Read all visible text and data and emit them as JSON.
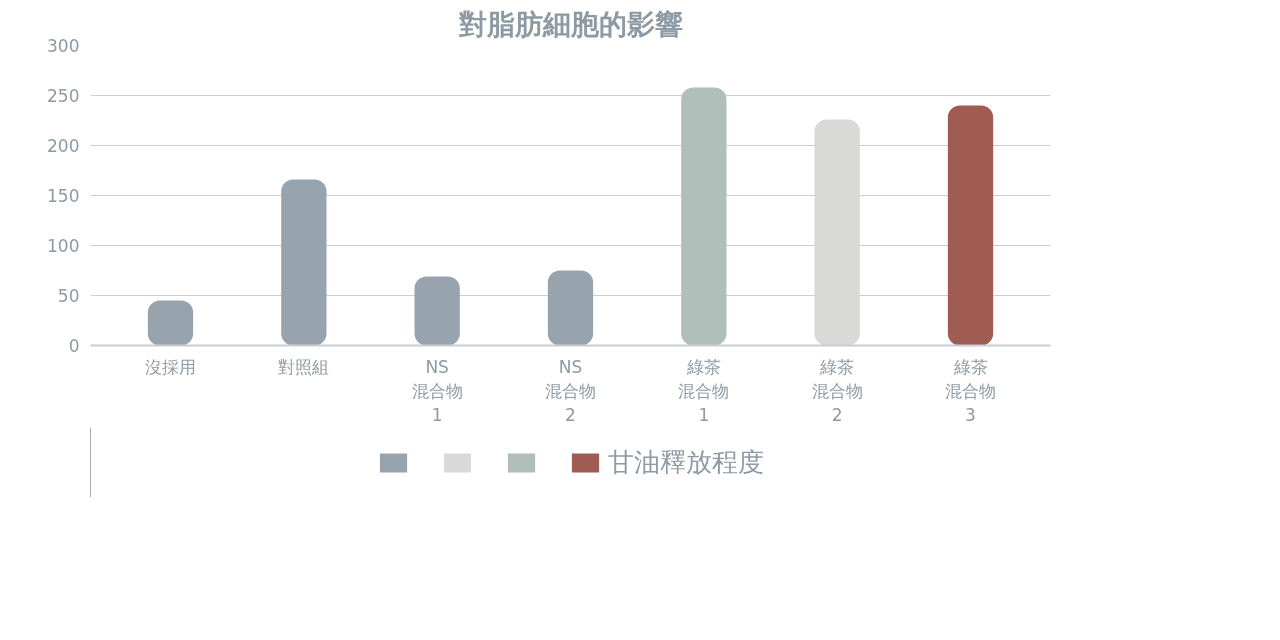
{
  "chart_data": {
    "type": "bar",
    "title": "對脂肪細胞的影響",
    "categories": [
      "沒採用",
      "對照組",
      "NS\n混合物\n1",
      "NS\n混合物\n2",
      "綠茶混合物\n1",
      "綠茶混合物\n2",
      "綠茶混合物\n3"
    ],
    "series": [
      {
        "name": "甘油釋放程度",
        "colors": [
          "#97a4ae",
          "#97a4ae",
          "#97a4ae",
          "#97a4ae",
          "#b0bfba",
          "#d9d9d7",
          "#a05c52"
        ],
        "values": [
          45,
          166,
          69,
          75,
          258,
          226,
          240
        ]
      }
    ],
    "ylim": [
      0,
      300
    ],
    "yticks": [
      0,
      50,
      100,
      150,
      200,
      250,
      300
    ],
    "grid": "y",
    "legend": "bottom"
  }
}
